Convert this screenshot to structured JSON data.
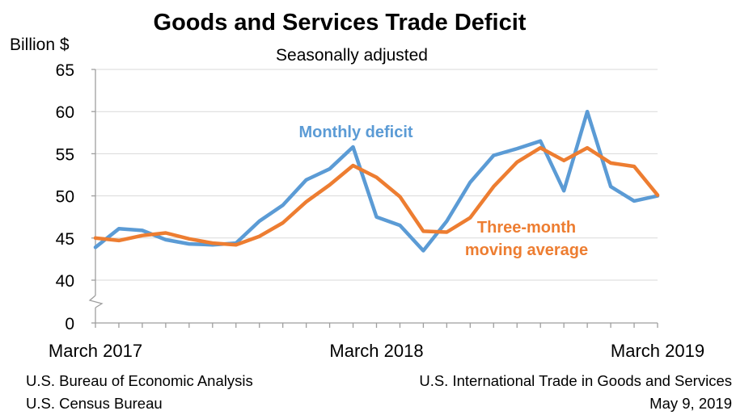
{
  "chart_data": {
    "type": "line",
    "title": "Goods and Services Trade Deficit",
    "subtitle": "Seasonally adjusted",
    "ylabel": "Billion $",
    "xlabel": "",
    "ylim": [
      40,
      65
    ],
    "y_break": "axis break between 0 and 40",
    "yticks": [
      0,
      40,
      45,
      50,
      55,
      60,
      65
    ],
    "grid": true,
    "x_tick_labels": [
      {
        "index": 0,
        "label": "March 2017"
      },
      {
        "index": 12,
        "label": "March 2018"
      },
      {
        "index": 24,
        "label": "March 2019"
      }
    ],
    "categories": [
      "Mar 2017",
      "Apr 2017",
      "May 2017",
      "Jun 2017",
      "Jul 2017",
      "Aug 2017",
      "Sep 2017",
      "Oct 2017",
      "Nov 2017",
      "Dec 2017",
      "Jan 2018",
      "Feb 2018",
      "Mar 2018",
      "Apr 2018",
      "May 2018",
      "Jun 2018",
      "Jul 2018",
      "Aug 2018",
      "Sep 2018",
      "Oct 2018",
      "Nov 2018",
      "Dec 2018",
      "Jan 2019",
      "Feb 2019",
      "Mar 2019"
    ],
    "series": [
      {
        "name": "Monthly deficit",
        "label": "Monthly deficit",
        "color": "#5b9bd5",
        "values": [
          43.9,
          46.1,
          45.9,
          44.8,
          44.3,
          44.2,
          44.4,
          47.0,
          48.9,
          51.9,
          53.2,
          55.8,
          47.5,
          46.5,
          43.5,
          47.0,
          51.6,
          54.8,
          55.6,
          56.5,
          50.6,
          60.0,
          51.1,
          49.4,
          50.0
        ]
      },
      {
        "name": "Three-month moving average",
        "label_line1": "Three-month",
        "label_line2": "moving average",
        "color": "#ed7d31",
        "values": [
          45.0,
          44.7,
          45.3,
          45.6,
          44.9,
          44.4,
          44.2,
          45.2,
          46.8,
          49.3,
          51.3,
          53.6,
          52.2,
          49.9,
          45.8,
          45.7,
          47.4,
          51.1,
          54.0,
          55.7,
          54.2,
          55.7,
          53.9,
          53.5,
          50.1
        ]
      }
    ]
  },
  "footer": {
    "left_line1": "U.S. Bureau of Economic Analysis",
    "left_line2": "U.S. Census Bureau",
    "right_line1": "U.S. International Trade in Goods and Services",
    "right_line2": "May 9, 2019"
  }
}
